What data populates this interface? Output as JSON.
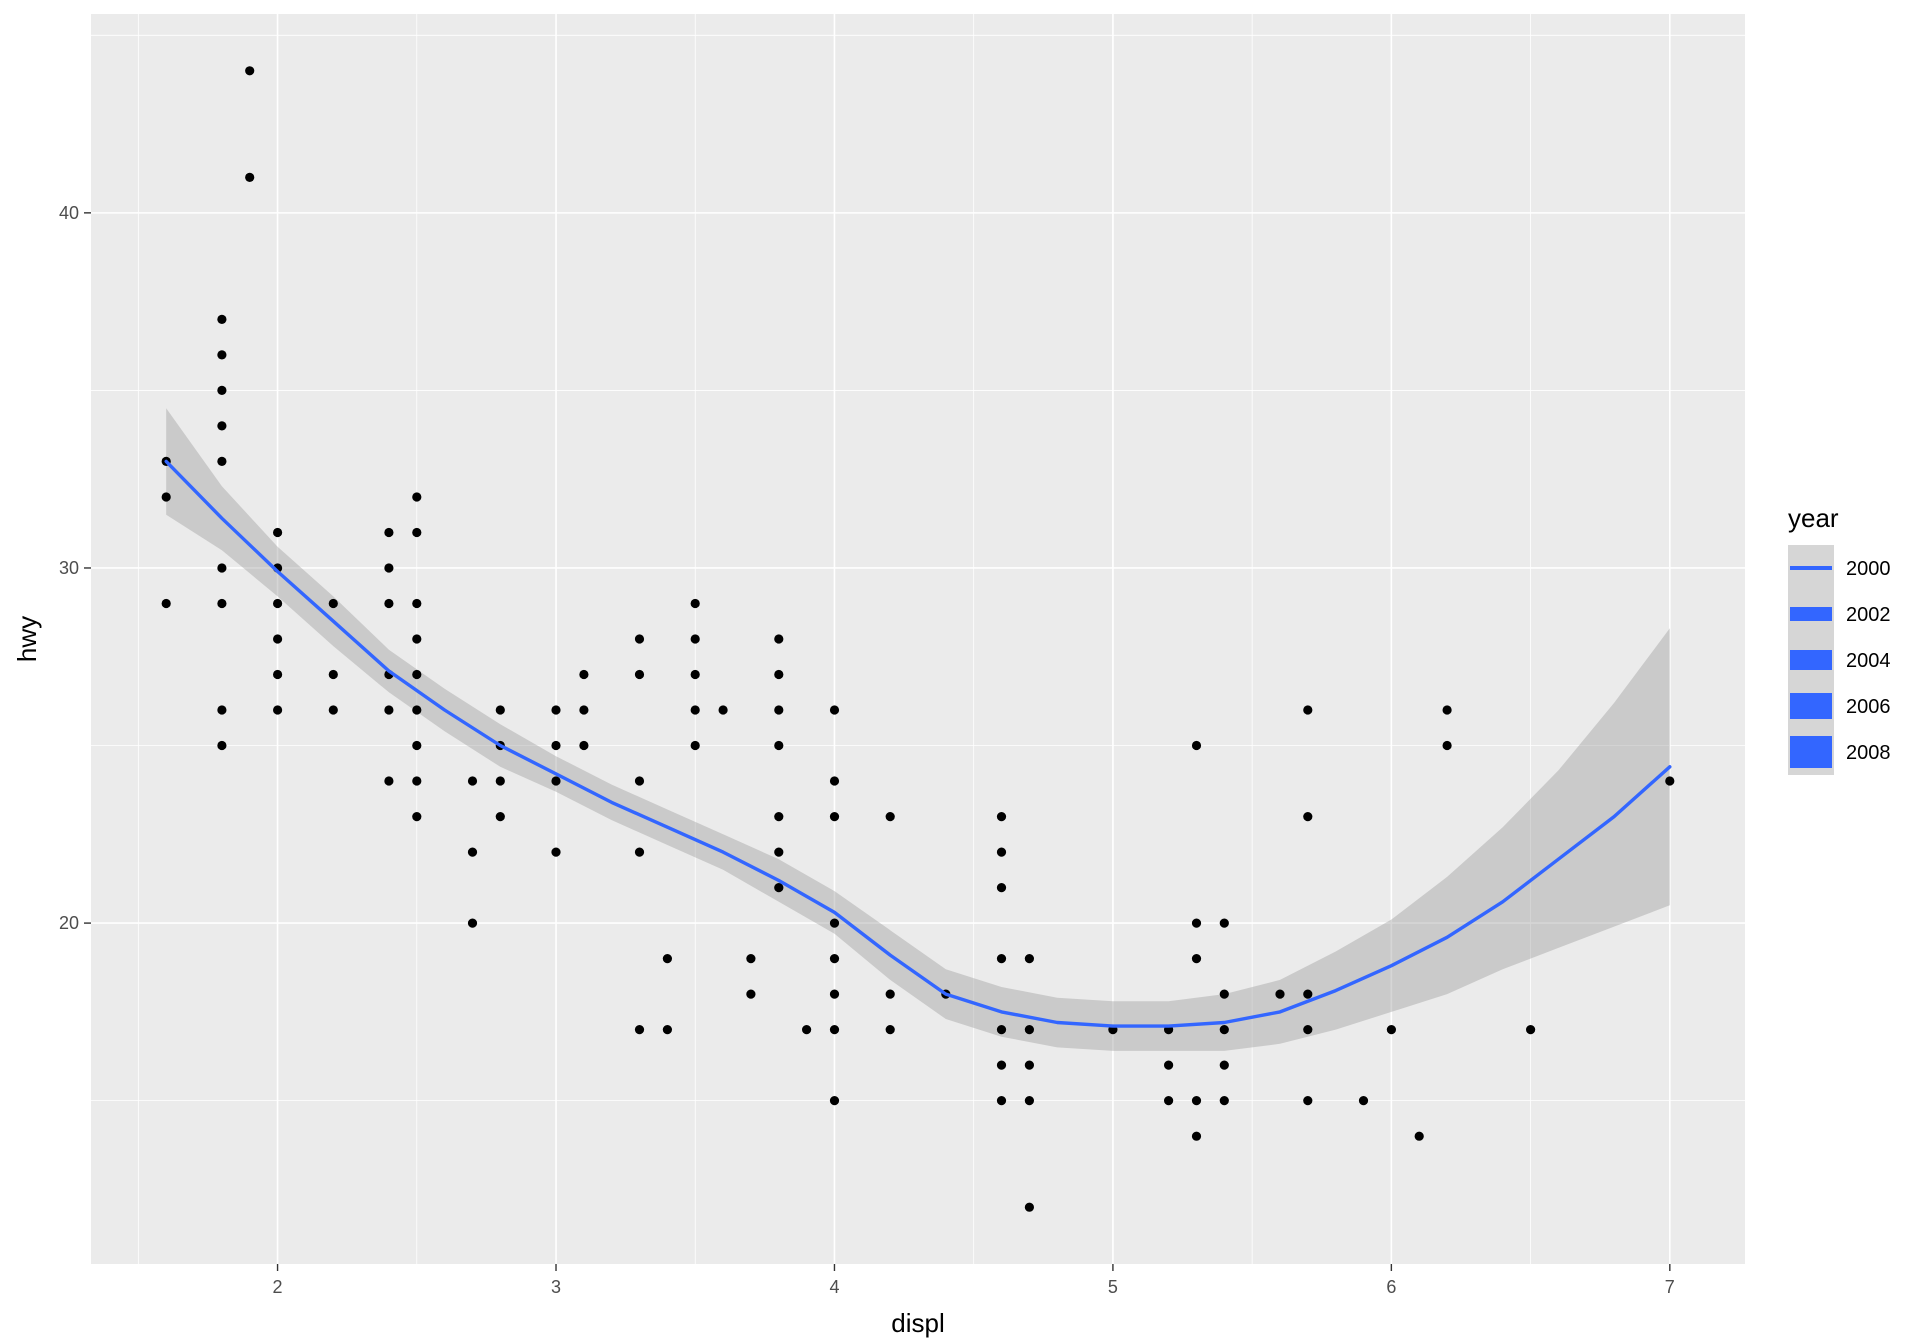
{
  "chart_data": {
    "type": "scatter",
    "xlabel": "displ",
    "ylabel": "hwy",
    "xlim": [
      1.33,
      7.27
    ],
    "ylim": [
      10.4,
      45.6
    ],
    "xticks": [
      2,
      3,
      4,
      5,
      6,
      7
    ],
    "yticks": [
      20,
      30,
      40
    ],
    "grid": true,
    "points": [
      [
        1.6,
        33
      ],
      [
        1.6,
        32
      ],
      [
        1.6,
        29
      ],
      [
        1.8,
        37
      ],
      [
        1.8,
        36
      ],
      [
        1.8,
        35
      ],
      [
        1.8,
        34
      ],
      [
        1.8,
        33
      ],
      [
        1.8,
        30
      ],
      [
        1.8,
        29
      ],
      [
        1.8,
        26
      ],
      [
        1.8,
        25
      ],
      [
        1.9,
        44
      ],
      [
        1.9,
        41
      ],
      [
        2.0,
        31
      ],
      [
        2.0,
        30
      ],
      [
        2.0,
        29
      ],
      [
        2.0,
        28
      ],
      [
        2.0,
        27
      ],
      [
        2.0,
        26
      ],
      [
        2.2,
        29
      ],
      [
        2.2,
        27
      ],
      [
        2.2,
        26
      ],
      [
        2.4,
        31
      ],
      [
        2.4,
        30
      ],
      [
        2.4,
        29
      ],
      [
        2.4,
        27
      ],
      [
        2.4,
        26
      ],
      [
        2.4,
        24
      ],
      [
        2.5,
        32
      ],
      [
        2.5,
        31
      ],
      [
        2.5,
        29
      ],
      [
        2.5,
        28
      ],
      [
        2.5,
        27
      ],
      [
        2.5,
        26
      ],
      [
        2.5,
        25
      ],
      [
        2.5,
        24
      ],
      [
        2.5,
        23
      ],
      [
        2.7,
        24
      ],
      [
        2.7,
        22
      ],
      [
        2.7,
        20
      ],
      [
        2.8,
        26
      ],
      [
        2.8,
        25
      ],
      [
        2.8,
        24
      ],
      [
        2.8,
        23
      ],
      [
        3.0,
        26
      ],
      [
        3.0,
        25
      ],
      [
        3.0,
        24
      ],
      [
        3.0,
        22
      ],
      [
        3.1,
        27
      ],
      [
        3.1,
        26
      ],
      [
        3.1,
        25
      ],
      [
        3.3,
        28
      ],
      [
        3.3,
        27
      ],
      [
        3.3,
        24
      ],
      [
        3.3,
        22
      ],
      [
        3.3,
        17
      ],
      [
        3.4,
        19
      ],
      [
        3.4,
        17
      ],
      [
        3.5,
        29
      ],
      [
        3.5,
        28
      ],
      [
        3.5,
        27
      ],
      [
        3.5,
        26
      ],
      [
        3.5,
        25
      ],
      [
        3.6,
        26
      ],
      [
        3.7,
        19
      ],
      [
        3.7,
        18
      ],
      [
        3.8,
        28
      ],
      [
        3.8,
        27
      ],
      [
        3.8,
        26
      ],
      [
        3.8,
        25
      ],
      [
        3.8,
        23
      ],
      [
        3.8,
        22
      ],
      [
        3.8,
        21
      ],
      [
        3.9,
        17
      ],
      [
        4.0,
        26
      ],
      [
        4.0,
        24
      ],
      [
        4.0,
        23
      ],
      [
        4.0,
        20
      ],
      [
        4.0,
        19
      ],
      [
        4.0,
        18
      ],
      [
        4.0,
        17
      ],
      [
        4.0,
        15
      ],
      [
        4.2,
        23
      ],
      [
        4.2,
        18
      ],
      [
        4.2,
        17
      ],
      [
        4.4,
        18
      ],
      [
        4.6,
        23
      ],
      [
        4.6,
        22
      ],
      [
        4.6,
        21
      ],
      [
        4.6,
        19
      ],
      [
        4.6,
        17
      ],
      [
        4.6,
        16
      ],
      [
        4.6,
        15
      ],
      [
        4.7,
        19
      ],
      [
        4.7,
        17
      ],
      [
        4.7,
        16
      ],
      [
        4.7,
        15
      ],
      [
        4.7,
        12
      ],
      [
        5.0,
        17
      ],
      [
        5.2,
        17
      ],
      [
        5.2,
        16
      ],
      [
        5.2,
        15
      ],
      [
        5.3,
        25
      ],
      [
        5.3,
        20
      ],
      [
        5.3,
        19
      ],
      [
        5.3,
        15
      ],
      [
        5.3,
        14
      ],
      [
        5.4,
        20
      ],
      [
        5.4,
        18
      ],
      [
        5.4,
        17
      ],
      [
        5.4,
        16
      ],
      [
        5.4,
        15
      ],
      [
        5.6,
        18
      ],
      [
        5.7,
        26
      ],
      [
        5.7,
        23
      ],
      [
        5.7,
        18
      ],
      [
        5.7,
        17
      ],
      [
        5.7,
        15
      ],
      [
        5.9,
        15
      ],
      [
        6.0,
        17
      ],
      [
        6.1,
        14
      ],
      [
        6.2,
        26
      ],
      [
        6.2,
        25
      ],
      [
        6.5,
        17
      ],
      [
        7.0,
        24
      ]
    ],
    "smooth": {
      "color": "#3366FF",
      "band_color": "#999999",
      "x": [
        1.6,
        1.8,
        2.0,
        2.2,
        2.4,
        2.6,
        2.8,
        3.0,
        3.2,
        3.4,
        3.6,
        3.8,
        4.0,
        4.2,
        4.4,
        4.6,
        4.8,
        5.0,
        5.2,
        5.4,
        5.6,
        5.8,
        6.0,
        6.2,
        6.4,
        6.6,
        6.8,
        7.0
      ],
      "y": [
        33.0,
        31.4,
        29.9,
        28.5,
        27.1,
        26.0,
        25.0,
        24.2,
        23.4,
        22.7,
        22.0,
        21.2,
        20.3,
        19.1,
        18.0,
        17.5,
        17.2,
        17.1,
        17.1,
        17.2,
        17.5,
        18.1,
        18.8,
        19.6,
        20.6,
        21.8,
        23.0,
        24.4
      ],
      "ymin": [
        31.5,
        30.5,
        29.2,
        27.8,
        26.5,
        25.4,
        24.4,
        23.7,
        22.9,
        22.2,
        21.5,
        20.6,
        19.7,
        18.4,
        17.3,
        16.8,
        16.5,
        16.4,
        16.4,
        16.4,
        16.6,
        17.0,
        17.5,
        18.0,
        18.7,
        19.3,
        19.9,
        20.5
      ],
      "ymax": [
        34.5,
        32.3,
        30.6,
        29.2,
        27.7,
        26.6,
        25.6,
        24.7,
        23.9,
        23.2,
        22.5,
        21.8,
        20.9,
        19.8,
        18.7,
        18.2,
        17.9,
        17.8,
        17.8,
        18.0,
        18.4,
        19.2,
        20.1,
        21.3,
        22.7,
        24.3,
        26.2,
        28.3
      ]
    },
    "legend": {
      "title": "year",
      "position": "right",
      "entries": [
        "2000",
        "2002",
        "2004",
        "2006",
        "2008"
      ]
    },
    "colors": {
      "panel_background": "#EBEBEB",
      "grid_major": "#FFFFFF",
      "point": "#000000",
      "line": "#3366FF"
    }
  }
}
